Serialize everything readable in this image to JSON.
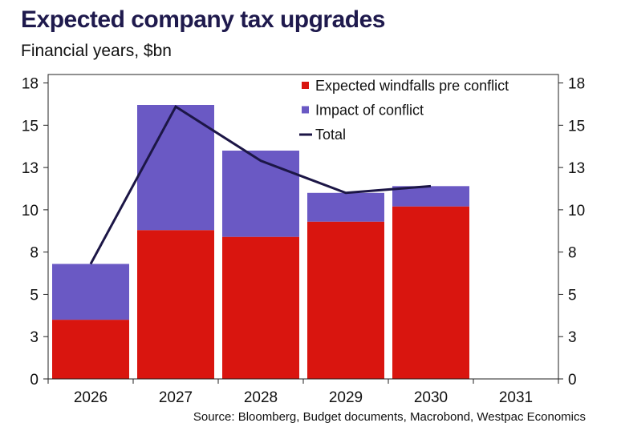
{
  "title": "Expected company tax upgrades",
  "subtitle": "Financial years, $bn",
  "source": "Source: Bloomberg, Budget documents, Macrobond, Westpac Economics",
  "colors": {
    "windfall": "#d9150f",
    "conflict": "#6a59c4",
    "total": "#1c1646"
  },
  "chart_data": {
    "type": "bar",
    "stacked": true,
    "categories": [
      "2026",
      "2027",
      "2028",
      "2029",
      "2030",
      "2031"
    ],
    "ylim": [
      0,
      18
    ],
    "yticks": [
      0,
      3,
      5,
      8,
      10,
      13,
      15,
      18
    ],
    "ytick_values": [
      0,
      2.5,
      5,
      7.5,
      10,
      12.5,
      15,
      17.5
    ],
    "series": [
      {
        "name": "Expected windfalls pre conflict",
        "kind": "bar",
        "values": [
          3.5,
          8.8,
          8.4,
          9.3,
          10.2,
          null
        ]
      },
      {
        "name": "Impact of conflict",
        "kind": "bar",
        "values": [
          3.3,
          7.4,
          5.1,
          1.7,
          1.2,
          null
        ]
      },
      {
        "name": "Total",
        "kind": "line",
        "values": [
          6.8,
          16.1,
          12.9,
          11.0,
          11.4,
          null
        ]
      }
    ],
    "legend": [
      "Expected windfalls pre conflict",
      "Impact of conflict",
      "Total"
    ],
    "legend_position": "top-right",
    "xlabel": "",
    "ylabel": ""
  }
}
